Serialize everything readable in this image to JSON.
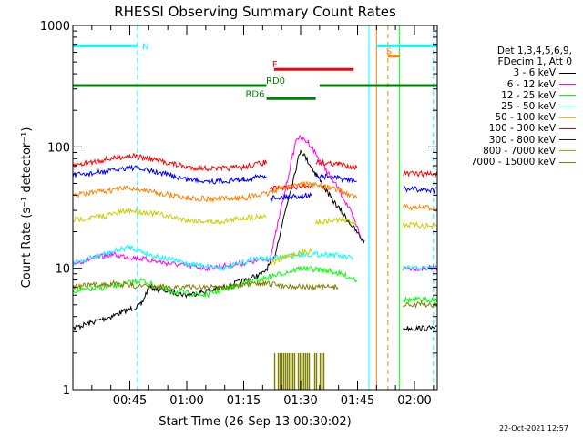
{
  "chart_data": {
    "type": "line",
    "title": "RHESSI Observing Summary Count Rates",
    "xlabel": "Start Time (26-Sep-13 00:30:02)",
    "ylabel": "Count Rate (s⁻¹ detector⁻¹)",
    "yscale": "log",
    "ylim": [
      1,
      1000
    ],
    "y_ticks": [
      "1",
      "10",
      "100",
      "1000"
    ],
    "x_range_minutes": [
      "00:30",
      "02:06"
    ],
    "x_ticks": [
      "00:45",
      "01:00",
      "01:15",
      "01:30",
      "01:45",
      "02:00"
    ],
    "legend_header": [
      "Det 1,3,4,5,6,9,",
      "FDecim 1, Att 0"
    ],
    "series": [
      {
        "name": "3 - 6 keV",
        "color": "#000000",
        "points": [
          [
            "00:30",
            3.2
          ],
          [
            "00:40",
            4.0
          ],
          [
            "00:48",
            5.0
          ],
          [
            "00:50",
            7.0
          ],
          [
            "01:00",
            6.0
          ],
          [
            "01:10",
            7.0
          ],
          [
            "01:20",
            9.0
          ],
          [
            "01:23",
            12
          ],
          [
            "01:26",
            30
          ],
          [
            "01:30",
            95
          ],
          [
            "01:34",
            60
          ],
          [
            "01:38",
            38
          ],
          [
            "01:42",
            26
          ],
          [
            "01:47",
            16
          ],
          [
            "01:48",
            null
          ],
          [
            "01:57",
            3.2
          ],
          [
            "02:06",
            3.2
          ]
        ]
      },
      {
        "name": "6 - 12 keV",
        "color": "#ff00ff",
        "points": [
          [
            "00:30",
            11
          ],
          [
            "00:40",
            13
          ],
          [
            "00:48",
            12
          ],
          [
            "00:55",
            11
          ],
          [
            "01:05",
            10
          ],
          [
            "01:15",
            11
          ],
          [
            "01:22",
            12
          ],
          [
            "01:26",
            45
          ],
          [
            "01:29",
            120
          ],
          [
            "01:32",
            110
          ],
          [
            "01:36",
            70
          ],
          [
            "01:40",
            45
          ],
          [
            "01:43",
            30
          ],
          [
            "01:46",
            18
          ],
          [
            "01:47",
            null
          ],
          [
            "01:57",
            10
          ],
          [
            "02:06",
            10
          ]
        ]
      },
      {
        "name": "12 - 25 keV",
        "color": "#00ff00",
        "points": [
          [
            "00:30",
            6.5
          ],
          [
            "00:40",
            7.0
          ],
          [
            "00:48",
            8.0
          ],
          [
            "00:55",
            6.5
          ],
          [
            "01:05",
            6.0
          ],
          [
            "01:15",
            7.5
          ],
          [
            "01:22",
            8.5
          ],
          [
            "01:30",
            10
          ],
          [
            "01:38",
            9.5
          ],
          [
            "01:45",
            8.0
          ],
          [
            "01:47",
            null
          ],
          [
            "01:57",
            5.5
          ],
          [
            "02:06",
            5.5
          ]
        ]
      },
      {
        "name": "25 - 50 keV",
        "color": "#00ffff",
        "points": [
          [
            "00:30",
            11
          ],
          [
            "00:38",
            13
          ],
          [
            "00:45",
            15
          ],
          [
            "00:50",
            13
          ],
          [
            "01:00",
            11
          ],
          [
            "01:10",
            10
          ],
          [
            "01:18",
            12
          ],
          [
            "01:22",
            12
          ],
          [
            "01:30",
            13
          ],
          [
            "01:38",
            13
          ],
          [
            "01:44",
            12
          ],
          [
            "01:47",
            null
          ],
          [
            "01:57",
            10
          ],
          [
            "02:06",
            10
          ]
        ]
      },
      {
        "name": "50 - 100 keV",
        "color": "#cccc00",
        "points": [
          [
            "00:30",
            25
          ],
          [
            "00:38",
            27
          ],
          [
            "00:45",
            30
          ],
          [
            "00:52",
            28
          ],
          [
            "01:00",
            25
          ],
          [
            "01:08",
            24
          ],
          [
            "01:15",
            26
          ],
          [
            "01:21",
            27
          ],
          [
            "01:22",
            null
          ],
          [
            "01:22",
            11
          ],
          [
            "01:28",
            13
          ],
          [
            "01:33",
            14
          ],
          [
            "01:34",
            null
          ],
          [
            "01:34",
            24
          ],
          [
            "01:40",
            25
          ],
          [
            "01:45",
            24
          ],
          [
            "01:47",
            null
          ],
          [
            "01:57",
            23
          ],
          [
            "02:06",
            22
          ]
        ]
      },
      {
        "name": "100 - 300 keV",
        "color": "#ff0000",
        "points": [
          [
            "00:30",
            70
          ],
          [
            "00:38",
            78
          ],
          [
            "00:45",
            85
          ],
          [
            "00:52",
            78
          ],
          [
            "01:00",
            68
          ],
          [
            "01:08",
            66
          ],
          [
            "01:15",
            68
          ],
          [
            "01:21",
            75
          ],
          [
            "01:22",
            null
          ],
          [
            "01:22",
            45
          ],
          [
            "01:33",
            48
          ],
          [
            "01:34",
            null
          ],
          [
            "01:34",
            75
          ],
          [
            "01:40",
            72
          ],
          [
            "01:45",
            68
          ],
          [
            "01:47",
            null
          ],
          [
            "01:57",
            60
          ],
          [
            "02:06",
            60
          ]
        ]
      },
      {
        "name": "300 - 800 keV",
        "color": "#0000ff",
        "points": [
          [
            "00:30",
            58
          ],
          [
            "00:38",
            62
          ],
          [
            "00:45",
            68
          ],
          [
            "00:52",
            62
          ],
          [
            "01:00",
            54
          ],
          [
            "01:08",
            52
          ],
          [
            "01:15",
            54
          ],
          [
            "01:21",
            58
          ],
          [
            "01:22",
            null
          ],
          [
            "01:22",
            38
          ],
          [
            "01:33",
            40
          ],
          [
            "01:34",
            null
          ],
          [
            "01:34",
            58
          ],
          [
            "01:40",
            55
          ],
          [
            "01:45",
            52
          ],
          [
            "01:47",
            null
          ],
          [
            "01:57",
            45
          ],
          [
            "02:06",
            44
          ]
        ]
      },
      {
        "name": "800 - 7000 keV",
        "color": "#ff8000",
        "points": [
          [
            "00:30",
            40
          ],
          [
            "00:38",
            43
          ],
          [
            "00:45",
            46
          ],
          [
            "00:52",
            42
          ],
          [
            "01:00",
            38
          ],
          [
            "01:08",
            37
          ],
          [
            "01:15",
            38
          ],
          [
            "01:21",
            41
          ],
          [
            "01:25",
            46
          ],
          [
            "01:30",
            50
          ],
          [
            "01:35",
            48
          ],
          [
            "01:40",
            44
          ],
          [
            "01:45",
            38
          ],
          [
            "01:47",
            null
          ],
          [
            "01:57",
            32
          ],
          [
            "02:06",
            31
          ]
        ]
      },
      {
        "name": "7000 - 15000 keV",
        "color": "#808000",
        "points": [
          [
            "00:30",
            7.0
          ],
          [
            "00:40",
            7.5
          ],
          [
            "00:50",
            7.0
          ],
          [
            "01:00",
            7.0
          ],
          [
            "01:10",
            7.0
          ],
          [
            "01:20",
            7.5
          ],
          [
            "01:30",
            7.0
          ],
          [
            "01:40",
            7.0
          ],
          [
            "01:47",
            null
          ],
          [
            "01:57",
            5.0
          ],
          [
            "02:06",
            5.0
          ]
        ]
      }
    ],
    "flag_bars": [
      {
        "label": "N",
        "color": "#00ffff",
        "y": 680,
        "segments": [
          [
            "00:30",
            "00:47"
          ],
          [
            "01:50",
            "02:06"
          ]
        ]
      },
      {
        "label": "S",
        "color": "#ff8000",
        "y": 560,
        "segments": [
          [
            "01:53",
            "01:56"
          ]
        ]
      },
      {
        "label": "F",
        "color": "#ff0000",
        "y": 435,
        "segments": [
          [
            "01:23",
            "01:44"
          ]
        ]
      },
      {
        "label": "RD0",
        "color": "#008000",
        "y": 320,
        "segments": [
          [
            "00:30",
            "01:21"
          ],
          [
            "01:35",
            "02:06"
          ]
        ]
      },
      {
        "label": "RD6",
        "color": "#008000",
        "y": 250,
        "segments": [
          [
            "01:21",
            "01:34"
          ]
        ]
      }
    ],
    "vlines": [
      {
        "t": "00:30",
        "color": "#00ffff",
        "dashed": false
      },
      {
        "t": "00:47",
        "color": "#00ffff",
        "dashed": true
      },
      {
        "t": "01:48",
        "color": "#00ffff",
        "dashed": false
      },
      {
        "t": "01:50",
        "color": "#ff8000",
        "dashed": false
      },
      {
        "t": "01:53",
        "color": "#ff8000",
        "dashed": true
      },
      {
        "t": "01:56",
        "color": "#00ff00",
        "dashed": false
      },
      {
        "t": "02:05",
        "color": "#00ffff",
        "dashed": true
      }
    ],
    "saa_blocks": {
      "color": "#808000",
      "range": [
        "01:23",
        "01:37"
      ],
      "top_value": 2.0
    },
    "timestamp": "22-Oct-2021 12:57"
  }
}
